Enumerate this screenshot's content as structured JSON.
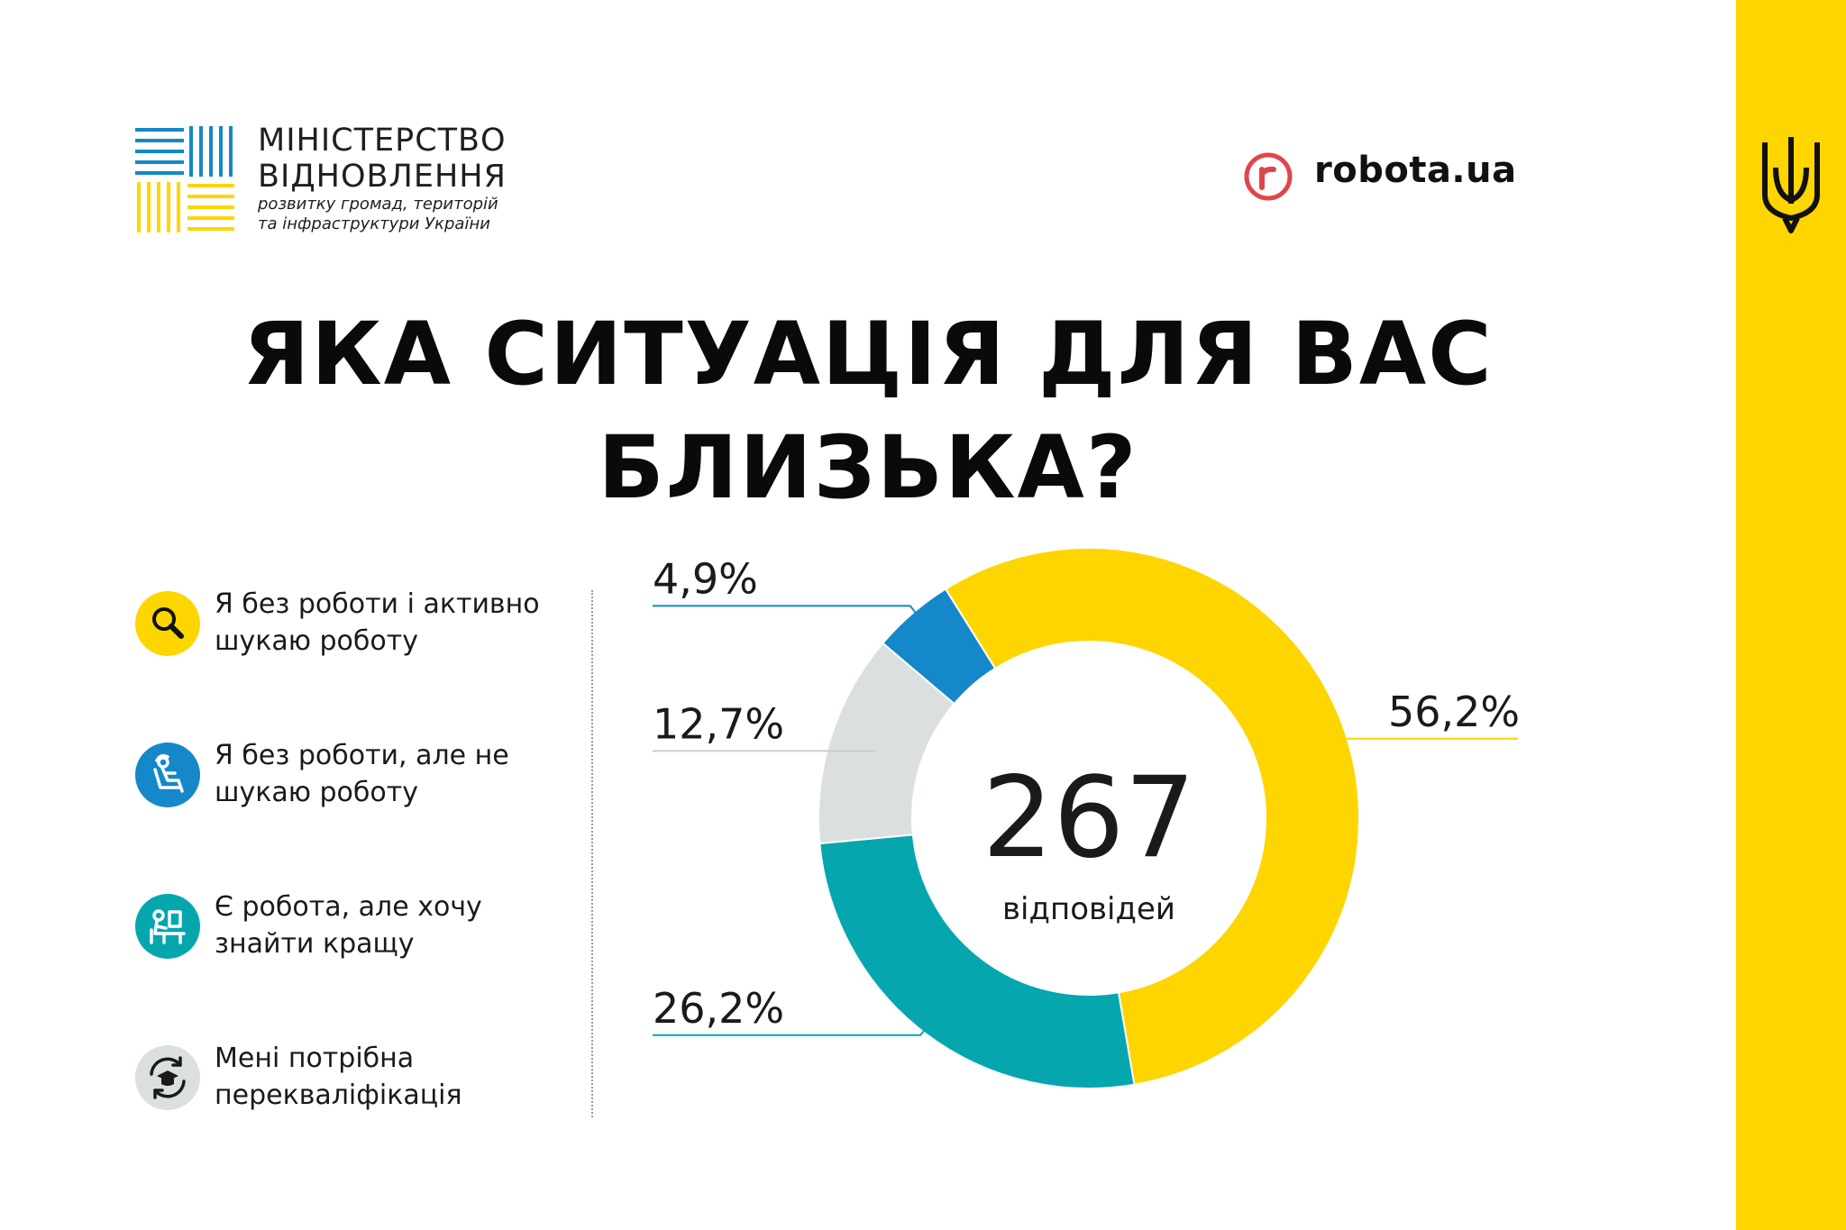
{
  "brand": {
    "ministry_line1": "МІНІСТЕРСТВО",
    "ministry_line2": "ВІДНОВЛЕННЯ",
    "ministry_line3": "розвитку громад, територій",
    "ministry_line4": "та інфраструктури України",
    "partner": "robota.ua"
  },
  "title_line1": "ЯКА СИТУАЦІЯ ДЛЯ ВАС",
  "title_line2": "БЛИЗЬКА?",
  "colors": {
    "yellow": "#FFD500",
    "blue": "#1488C8",
    "teal": "#06A6AE",
    "gray": "#DCDFE0",
    "robota_red": "#E0454A"
  },
  "legend": [
    {
      "line1": "Я без роботи і активно",
      "line2": "шукаю роботу",
      "icon": "magnifier-icon",
      "color": "#FFD500"
    },
    {
      "line1": "Я без роботи, але не",
      "line2": "шукаю роботу",
      "icon": "relaxing-person-icon",
      "color": "#1488C8"
    },
    {
      "line1": "Є робота, але хочу",
      "line2": "знайти кращу",
      "icon": "desk-worker-icon",
      "color": "#06A6AE"
    },
    {
      "line1": "Мені потрібна",
      "line2": "перекваліфікація",
      "icon": "graduation-cycle-icon",
      "color": "#DCDFE0"
    }
  ],
  "chart_data": {
    "type": "pie",
    "donut": true,
    "total": "267",
    "total_caption": "відповідей",
    "slices": [
      {
        "value": 56.2,
        "label": "56,2%",
        "color": "#FFD500"
      },
      {
        "value": 26.2,
        "label": "26,2%",
        "color": "#06A6AE"
      },
      {
        "value": 12.7,
        "label": "12,7%",
        "color": "#DCDFE0"
      },
      {
        "value": 4.9,
        "label": "4,9%",
        "color": "#1488C8"
      }
    ]
  }
}
